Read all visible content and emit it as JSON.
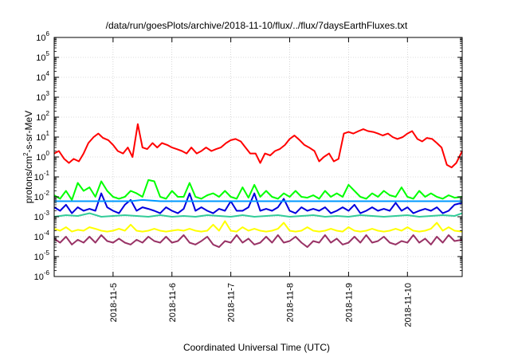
{
  "chart_data": {
    "type": "line",
    "title": "/data/run/goesPlots/archive/2018-11-10/flux/../flux/7daysEarthFluxes.txt",
    "xlabel": "Coordinated Universal Time (UTC)",
    "ylabel_parts": {
      "pre": "protons/cm",
      "sup": "2",
      "post": "-s-sr-MeV"
    },
    "y_scale": "log",
    "ylim_exp": [
      -6,
      6
    ],
    "y_ticks": [
      {
        "base": "10",
        "exp": "-6"
      },
      {
        "base": "10",
        "exp": "-5"
      },
      {
        "base": "10",
        "exp": "-4"
      },
      {
        "base": "10",
        "exp": "-3"
      },
      {
        "base": "10",
        "exp": "-2"
      },
      {
        "base": "10",
        "exp": "-1"
      },
      {
        "base": "10",
        "exp": "0"
      },
      {
        "base": "10",
        "exp": "1"
      },
      {
        "base": "10",
        "exp": "2"
      },
      {
        "base": "10",
        "exp": "3"
      },
      {
        "base": "10",
        "exp": "4"
      },
      {
        "base": "10",
        "exp": "5"
      },
      {
        "base": "10",
        "exp": "6"
      }
    ],
    "x_ticks": [
      "2018-11-5",
      "2018-11-6",
      "2018-11-7",
      "2018-11-8",
      "2018-11-9",
      "2018-11-10"
    ],
    "x_tick_days": [
      1,
      2,
      3,
      4,
      5,
      6
    ],
    "x_range_days": [
      0,
      6.93
    ],
    "grid": true,
    "series": [
      {
        "color": "#ff0000",
        "x": [
          0,
          0.08,
          0.17,
          0.25,
          0.33,
          0.42,
          0.5,
          0.58,
          0.67,
          0.75,
          0.83,
          0.92,
          1,
          1.08,
          1.17,
          1.25,
          1.33,
          1.42,
          1.5,
          1.58,
          1.67,
          1.75,
          1.83,
          1.92,
          2,
          2.08,
          2.17,
          2.25,
          2.33,
          2.42,
          2.5,
          2.58,
          2.67,
          2.75,
          2.83,
          2.92,
          3,
          3.08,
          3.17,
          3.25,
          3.33,
          3.42,
          3.5,
          3.58,
          3.67,
          3.75,
          3.83,
          3.92,
          4,
          4.08,
          4.17,
          4.25,
          4.33,
          4.42,
          4.5,
          4.58,
          4.67,
          4.75,
          4.83,
          4.92,
          5,
          5.08,
          5.17,
          5.25,
          5.33,
          5.42,
          5.5,
          5.58,
          5.67,
          5.75,
          5.83,
          5.92,
          6,
          6.08,
          6.17,
          6.25,
          6.33,
          6.42,
          6.5,
          6.58,
          6.67,
          6.75,
          6.83,
          6.93
        ],
        "y": [
          1.5,
          2,
          0.8,
          0.5,
          0.8,
          0.6,
          1.5,
          5,
          10,
          15,
          9,
          7,
          4,
          2,
          1.5,
          3,
          1,
          45,
          3,
          2.5,
          5,
          3,
          5,
          4,
          3,
          2.5,
          2,
          1.5,
          3,
          1.5,
          2,
          3,
          2,
          2.5,
          3,
          5,
          7,
          8,
          6,
          3,
          1.5,
          1.5,
          0.5,
          1.5,
          1.2,
          2,
          2.5,
          4,
          8,
          12,
          7,
          4,
          3,
          2,
          0.6,
          1,
          1.5,
          0.6,
          0.8,
          15,
          18,
          15,
          20,
          25,
          20,
          18,
          15,
          12,
          15,
          10,
          8,
          10,
          15,
          20,
          8,
          6,
          9,
          8,
          5,
          3,
          0.4,
          0.3,
          0.5,
          2
        ]
      },
      {
        "color": "#00ff00",
        "x": [
          0,
          0.1,
          0.2,
          0.3,
          0.4,
          0.5,
          0.6,
          0.7,
          0.8,
          0.9,
          1,
          1.1,
          1.2,
          1.3,
          1.4,
          1.5,
          1.6,
          1.7,
          1.8,
          1.9,
          2,
          2.1,
          2.2,
          2.3,
          2.4,
          2.5,
          2.6,
          2.7,
          2.8,
          2.9,
          3,
          3.1,
          3.2,
          3.3,
          3.4,
          3.5,
          3.6,
          3.7,
          3.8,
          3.9,
          4,
          4.1,
          4.2,
          4.3,
          4.4,
          4.5,
          4.6,
          4.7,
          4.8,
          4.9,
          5,
          5.1,
          5.2,
          5.3,
          5.4,
          5.5,
          5.6,
          5.7,
          5.8,
          5.9,
          6,
          6.1,
          6.2,
          6.3,
          6.4,
          6.5,
          6.6,
          6.7,
          6.8,
          6.93
        ],
        "y": [
          0.012,
          0.008,
          0.02,
          0.007,
          0.05,
          0.02,
          0.03,
          0.01,
          0.06,
          0.02,
          0.01,
          0.008,
          0.01,
          0.02,
          0.015,
          0.01,
          0.07,
          0.06,
          0.01,
          0.008,
          0.02,
          0.01,
          0.01,
          0.05,
          0.01,
          0.008,
          0.012,
          0.015,
          0.01,
          0.02,
          0.01,
          0.008,
          0.03,
          0.009,
          0.04,
          0.01,
          0.02,
          0.01,
          0.008,
          0.015,
          0.01,
          0.02,
          0.01,
          0.009,
          0.012,
          0.008,
          0.02,
          0.01,
          0.015,
          0.01,
          0.04,
          0.02,
          0.01,
          0.008,
          0.015,
          0.01,
          0.02,
          0.012,
          0.01,
          0.03,
          0.01,
          0.008,
          0.02,
          0.01,
          0.015,
          0.01,
          0.008,
          0.012,
          0.009,
          0.01
        ]
      },
      {
        "color": "#0000dd",
        "x": [
          0,
          0.1,
          0.2,
          0.3,
          0.4,
          0.5,
          0.6,
          0.7,
          0.8,
          0.9,
          1,
          1.1,
          1.2,
          1.3,
          1.4,
          1.5,
          1.6,
          1.7,
          1.8,
          1.9,
          2,
          2.1,
          2.2,
          2.3,
          2.4,
          2.5,
          2.6,
          2.7,
          2.8,
          2.9,
          3,
          3.1,
          3.2,
          3.3,
          3.4,
          3.5,
          3.6,
          3.7,
          3.8,
          3.9,
          4,
          4.1,
          4.2,
          4.3,
          4.4,
          4.5,
          4.6,
          4.7,
          4.8,
          4.9,
          5,
          5.1,
          5.2,
          5.3,
          5.4,
          5.5,
          5.6,
          5.7,
          5.8,
          5.9,
          6,
          6.1,
          6.2,
          6.3,
          6.4,
          6.5,
          6.6,
          6.7,
          6.8,
          6.93
        ],
        "y": [
          0.003,
          0.002,
          0.004,
          0.0015,
          0.003,
          0.002,
          0.0025,
          0.002,
          0.015,
          0.003,
          0.002,
          0.0015,
          0.004,
          0.007,
          0.002,
          0.003,
          0.0025,
          0.002,
          0.0015,
          0.003,
          0.002,
          0.0015,
          0.0025,
          0.015,
          0.002,
          0.003,
          0.002,
          0.0015,
          0.0025,
          0.002,
          0.006,
          0.002,
          0.002,
          0.003,
          0.015,
          0.002,
          0.0025,
          0.002,
          0.003,
          0.008,
          0.002,
          0.0015,
          0.003,
          0.002,
          0.0025,
          0.002,
          0.003,
          0.0015,
          0.002,
          0.003,
          0.002,
          0.004,
          0.0015,
          0.002,
          0.003,
          0.002,
          0.0025,
          0.002,
          0.005,
          0.002,
          0.003,
          0.0015,
          0.002,
          0.0025,
          0.002,
          0.003,
          0.0015,
          0.002,
          0.004,
          0.005
        ]
      },
      {
        "color": "#0099ff",
        "x": [
          0,
          0.5,
          1,
          1.3,
          1.5,
          1.8,
          2,
          2.3,
          2.5,
          3,
          3.3,
          3.5,
          4,
          4.5,
          5,
          5.5,
          6,
          6.5,
          6.93
        ],
        "y": [
          0.006,
          0.006,
          0.006,
          0.006,
          0.007,
          0.006,
          0.006,
          0.006,
          0.006,
          0.006,
          0.006,
          0.006,
          0.006,
          0.006,
          0.006,
          0.006,
          0.006,
          0.006,
          0.006
        ]
      },
      {
        "color": "#33cc99",
        "x": [
          0,
          0.2,
          0.4,
          0.6,
          0.8,
          1,
          1.2,
          1.4,
          1.6,
          1.8,
          2,
          2.2,
          2.4,
          2.6,
          2.8,
          3,
          3.2,
          3.4,
          3.6,
          3.8,
          4,
          4.2,
          4.4,
          4.6,
          4.8,
          5,
          5.2,
          5.4,
          5.6,
          5.8,
          6,
          6.2,
          6.4,
          6.6,
          6.8,
          6.93
        ],
        "y": [
          0.001,
          0.0012,
          0.0011,
          0.0015,
          0.001,
          0.0011,
          0.0012,
          0.0011,
          0.001,
          0.0012,
          0.001,
          0.0011,
          0.001,
          0.0012,
          0.0011,
          0.001,
          0.0012,
          0.001,
          0.0011,
          0.0012,
          0.001,
          0.0011,
          0.0012,
          0.001,
          0.0011,
          0.001,
          0.0012,
          0.0011,
          0.001,
          0.0011,
          0.0012,
          0.001,
          0.0011,
          0.0012,
          0.0011,
          0.0015
        ]
      },
      {
        "color": "#ffff00",
        "x": [
          0,
          0.1,
          0.2,
          0.3,
          0.4,
          0.5,
          0.6,
          0.7,
          0.8,
          0.9,
          1,
          1.1,
          1.2,
          1.3,
          1.4,
          1.5,
          1.6,
          1.7,
          1.8,
          1.9,
          2,
          2.1,
          2.2,
          2.3,
          2.4,
          2.5,
          2.6,
          2.7,
          2.8,
          2.9,
          3,
          3.1,
          3.2,
          3.3,
          3.4,
          3.5,
          3.6,
          3.7,
          3.8,
          3.9,
          4,
          4.1,
          4.2,
          4.3,
          4.4,
          4.5,
          4.6,
          4.7,
          4.8,
          4.9,
          5,
          5.1,
          5.2,
          5.3,
          5.4,
          5.5,
          5.6,
          5.7,
          5.8,
          5.9,
          6,
          6.1,
          6.2,
          6.3,
          6.4,
          6.5,
          6.6,
          6.7,
          6.8,
          6.93
        ],
        "y": [
          0.00025,
          0.0002,
          0.0003,
          0.00018,
          0.00022,
          0.0002,
          0.0003,
          0.00025,
          0.0002,
          0.00018,
          0.0002,
          0.00025,
          0.0002,
          0.0004,
          0.0002,
          0.00018,
          0.0002,
          0.00025,
          0.0002,
          0.00018,
          0.0002,
          0.00022,
          0.0002,
          0.00025,
          0.0002,
          0.00018,
          0.0002,
          0.0004,
          0.0002,
          0.0006,
          0.0002,
          0.00018,
          0.0003,
          0.0002,
          0.00025,
          0.0002,
          0.00018,
          0.0002,
          0.00025,
          0.0005,
          0.0002,
          0.00018,
          0.0002,
          0.0003,
          0.0002,
          0.00018,
          0.0002,
          0.00025,
          0.0002,
          0.00018,
          0.0003,
          0.0002,
          0.00018,
          0.0002,
          0.00025,
          0.0002,
          0.00018,
          0.0002,
          0.00025,
          0.0002,
          0.0003,
          0.0002,
          0.00018,
          0.0002,
          0.00025,
          0.0005,
          0.0002,
          0.0003,
          0.0002,
          0.00018
        ]
      },
      {
        "color": "#993366",
        "x": [
          0,
          0.1,
          0.2,
          0.3,
          0.4,
          0.5,
          0.6,
          0.7,
          0.8,
          0.9,
          1,
          1.1,
          1.2,
          1.3,
          1.4,
          1.5,
          1.6,
          1.7,
          1.8,
          1.9,
          2,
          2.1,
          2.2,
          2.3,
          2.4,
          2.5,
          2.6,
          2.7,
          2.8,
          2.9,
          3,
          3.1,
          3.2,
          3.3,
          3.4,
          3.5,
          3.6,
          3.7,
          3.8,
          3.9,
          4,
          4.1,
          4.2,
          4.3,
          4.4,
          4.5,
          4.6,
          4.7,
          4.8,
          4.9,
          5,
          5.1,
          5.2,
          5.3,
          5.4,
          5.5,
          5.6,
          5.7,
          5.8,
          5.9,
          6,
          6.1,
          6.2,
          6.3,
          6.4,
          6.5,
          6.6,
          6.7,
          6.8,
          6.93
        ],
        "y": [
          8e-05,
          5e-05,
          0.0001,
          4e-05,
          7e-05,
          5e-05,
          0.0001,
          5e-05,
          0.00012,
          6e-05,
          5e-05,
          8e-05,
          5e-05,
          4e-05,
          7e-05,
          5e-05,
          0.0001,
          6e-05,
          5e-05,
          0.0001,
          5e-05,
          6e-05,
          0.00012,
          5e-05,
          4e-05,
          6e-05,
          0.0001,
          4e-05,
          3e-05,
          6e-05,
          5e-05,
          0.00012,
          5e-05,
          8e-05,
          4e-05,
          5e-05,
          0.0001,
          5e-05,
          0.00012,
          5e-05,
          6e-05,
          0.0001,
          5e-05,
          3e-05,
          6e-05,
          5e-05,
          0.00012,
          5e-05,
          8e-05,
          4e-05,
          5e-05,
          0.0001,
          5e-05,
          0.00012,
          5e-05,
          6e-05,
          0.0001,
          5e-05,
          4e-05,
          6e-05,
          5e-05,
          0.00012,
          5e-05,
          8e-05,
          4e-05,
          0.0001,
          5e-05,
          0.00012,
          6e-05,
          7e-05
        ]
      }
    ]
  }
}
